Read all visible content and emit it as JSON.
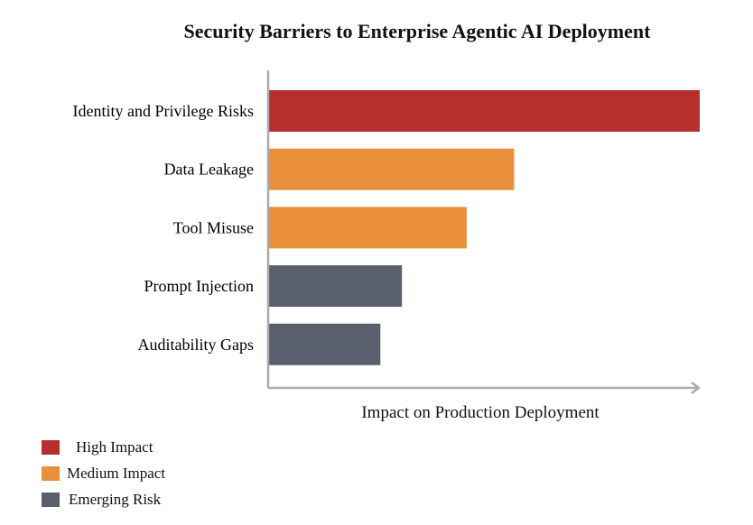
{
  "chart_data": {
    "type": "bar",
    "orientation": "horizontal",
    "title": "Security Barriers to Enterprise Agentic AI Deployment",
    "xlabel": "Impact on Production Deployment",
    "ylabel": "",
    "xlim": [
      0,
      100
    ],
    "grid": false,
    "categories": [
      "Identity and Privilege Risks",
      "Data Leakage",
      "Tool Misuse",
      "Prompt Injection",
      "Auditability Gaps"
    ],
    "values": [
      100,
      57,
      46,
      31,
      26
    ],
    "groups": [
      "high",
      "medium",
      "medium",
      "emerging",
      "emerging"
    ],
    "legend_position": "bottom-left",
    "legend": [
      {
        "key": "high",
        "label": "High Impact",
        "color": "#B5302D"
      },
      {
        "key": "medium",
        "label": "Medium Impact",
        "color": "#EA8F3C"
      },
      {
        "key": "emerging",
        "label": "Emerging Risk",
        "color": "#5A5F6E"
      }
    ]
  }
}
